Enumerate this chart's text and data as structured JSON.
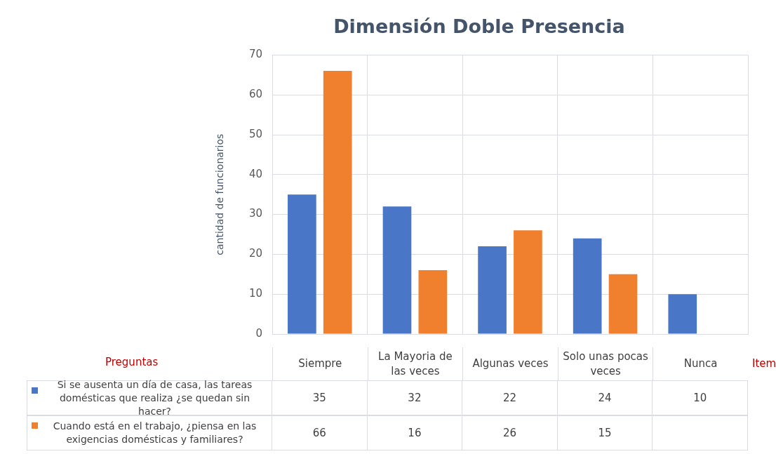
{
  "chart_data": {
    "type": "bar",
    "title": "Dimensión Doble Presencia",
    "ylabel": "cantidad de funcionarios",
    "categories": [
      "Siempre",
      "La Mayoria de las veces",
      "Algunas veces",
      "Solo unas pocas veces",
      "Nunca"
    ],
    "series": [
      {
        "name": "Si se ausenta un día de casa, las tareas domésticas que realiza ¿se quedan sin hacer?",
        "color": "#4a76c8",
        "values": [
          35,
          32,
          22,
          24,
          10
        ]
      },
      {
        "name": "Cuando está en el trabajo, ¿piensa en las exigencias domésticas y familiares?",
        "color": "#f07f2e",
        "values": [
          66,
          16,
          26,
          15,
          null
        ]
      }
    ],
    "ylim": [
      0,
      70
    ],
    "yticks": [
      0,
      10,
      20,
      30,
      40,
      50,
      60,
      70
    ],
    "grid": true,
    "legend": "bottom",
    "data_labels": true,
    "annotations": [
      "Preguntas",
      "Item"
    ]
  }
}
